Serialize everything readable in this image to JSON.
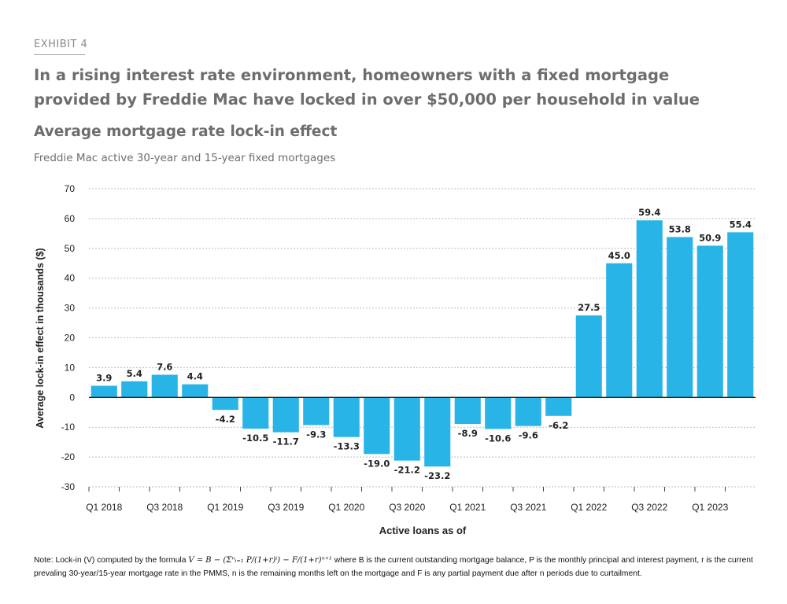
{
  "exhibit_label": "EXHIBIT 4",
  "headline": "In a rising interest rate environment, homeowners with a fixed mortgage provided by Freddie Mac have locked in over $50,000 per household in value",
  "chart_data": {
    "type": "bar",
    "title": "Average mortgage rate lock-in effect",
    "subtitle": "Freddie Mac active 30-year and 15-year fixed mortgages",
    "xlabel": "Active loans as of",
    "ylabel": "Average lock-in effect in thousands ($)",
    "ylim": [
      -30,
      70
    ],
    "yticks": [
      70,
      60,
      50,
      40,
      30,
      20,
      10,
      0,
      -10,
      -20,
      -30
    ],
    "grid": true,
    "bar_color": "#29b4e8",
    "categories": [
      "Q1 2018",
      "Q2 2018",
      "Q3 2018",
      "Q4 2018",
      "Q1 2019",
      "Q2 2019",
      "Q3 2019",
      "Q4 2019",
      "Q1 2020",
      "Q2 2020",
      "Q3 2020",
      "Q4 2020",
      "Q1 2021",
      "Q2 2021",
      "Q3 2021",
      "Q4 2021",
      "Q1 2022",
      "Q2 2022",
      "Q3 2022",
      "Q4 2022",
      "Q1 2023",
      "Q2 2023"
    ],
    "tick_labels": [
      "Q1 2018",
      "",
      "Q3 2018",
      "",
      "Q1 2019",
      "",
      "Q3 2019",
      "",
      "Q1 2020",
      "",
      "Q3 2020",
      "",
      "Q1 2021",
      "",
      "Q3 2021",
      "",
      "Q1 2022",
      "",
      "Q3 2022",
      "",
      "Q1 2023",
      ""
    ],
    "values": [
      3.9,
      5.4,
      7.6,
      4.4,
      -4.2,
      -10.5,
      -11.7,
      -9.3,
      -13.3,
      -19.0,
      -21.2,
      -23.2,
      -8.9,
      -10.6,
      -9.6,
      -6.2,
      27.5,
      45.0,
      59.4,
      53.8,
      50.9,
      55.4
    ],
    "data_labels": [
      "3.9",
      "5.4",
      "7.6",
      "4.4",
      "-4.2",
      "-10.5",
      "-11.7",
      "-9.3",
      "-13.3",
      "-19.0",
      "-21.2",
      "-23.2",
      "-8.9",
      "-10.6",
      "-9.6",
      "-6.2",
      "27.5",
      "45.0",
      "59.4",
      "53.8",
      "50.9",
      "55.4"
    ]
  },
  "note": {
    "prefix": "Note: Lock-in (V) computed by the formula",
    "formula": "V = B − (Σⁿᵢ₌₁ P/(1+r)ⁱ) − F/(1+r)ⁿ⁺¹",
    "suffix": "where B is the current outstanding mortgage balance, P is the monthly principal and interest payment, r is the current prevaling 30-year/15-year mortgage rate in the PMMS, n is the remaining months left on the mortgage and F is any partial payment due after n periods due to curtailment."
  }
}
